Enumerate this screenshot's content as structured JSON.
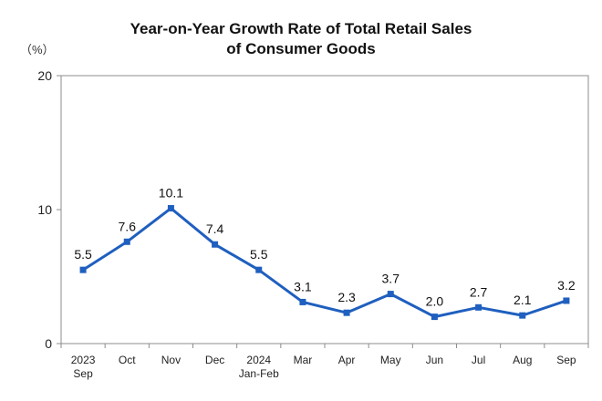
{
  "chart_data": {
    "type": "line",
    "title": [
      "Year-on-Year Growth Rate of Total Retail Sales",
      "of Consumer Goods"
    ],
    "unit": "（%）",
    "categories": [
      [
        "2023",
        "Sep"
      ],
      [
        "Oct"
      ],
      [
        "Nov"
      ],
      [
        "Dec"
      ],
      [
        "2024",
        "Jan-Feb"
      ],
      [
        "Mar"
      ],
      [
        "Apr"
      ],
      [
        "May"
      ],
      [
        "Jun"
      ],
      [
        "Jul"
      ],
      [
        "Aug"
      ],
      [
        "Sep"
      ]
    ],
    "values": [
      5.5,
      7.6,
      10.1,
      7.4,
      5.5,
      3.1,
      2.3,
      3.7,
      2.0,
      2.7,
      2.1,
      3.2
    ],
    "value_labels": [
      "5.5",
      "7.6",
      "10.1",
      "7.4",
      "5.5",
      "3.1",
      "2.3",
      "3.7",
      "2.0",
      "2.7",
      "2.1",
      "3.2"
    ],
    "ylim": [
      0,
      20
    ],
    "yticks": [
      0,
      10,
      20
    ],
    "grid": false,
    "line_color": "#1f5fbf"
  }
}
